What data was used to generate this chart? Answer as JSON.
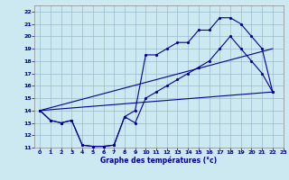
{
  "xlabel": "Graphe des températures (°c)",
  "bg_color": "#cce8f0",
  "grid_color": "#99bbcc",
  "line_color": "#000099",
  "xlim": [
    -0.5,
    23
  ],
  "ylim": [
    11,
    22.5
  ],
  "xticks": [
    0,
    1,
    2,
    3,
    4,
    5,
    6,
    7,
    8,
    9,
    10,
    11,
    12,
    13,
    14,
    15,
    16,
    17,
    18,
    19,
    20,
    21,
    22,
    23
  ],
  "yticks": [
    11,
    12,
    13,
    14,
    15,
    16,
    17,
    18,
    19,
    20,
    21,
    22
  ],
  "line_zigzag_x": [
    0,
    1,
    2,
    3,
    4,
    5,
    6,
    7,
    8,
    9,
    10,
    11,
    12,
    13,
    14,
    15,
    16,
    17,
    18,
    19,
    20,
    21,
    22
  ],
  "line_zigzag_y": [
    14,
    13.2,
    13,
    13.2,
    11.2,
    11.1,
    11.1,
    11.2,
    13.5,
    13,
    15,
    15.5,
    16,
    16.5,
    17,
    17.5,
    18,
    19,
    20,
    19,
    18,
    17,
    15.5
  ],
  "line_upper_x": [
    0,
    1,
    2,
    3,
    4,
    5,
    6,
    7,
    8,
    9,
    10,
    11,
    12,
    13,
    14,
    15,
    16,
    17,
    18,
    19,
    20,
    21,
    22
  ],
  "line_upper_y": [
    14,
    13.2,
    13,
    13.2,
    11.2,
    11.1,
    11.1,
    11.2,
    13.5,
    14,
    18.5,
    18.5,
    19,
    19.5,
    19.5,
    20.5,
    20.5,
    21.5,
    21.5,
    21,
    20,
    19,
    15.5
  ],
  "trend1_x": [
    0,
    22
  ],
  "trend1_y": [
    14,
    15.5
  ],
  "trend2_x": [
    0,
    22
  ],
  "trend2_y": [
    14,
    19.0
  ]
}
